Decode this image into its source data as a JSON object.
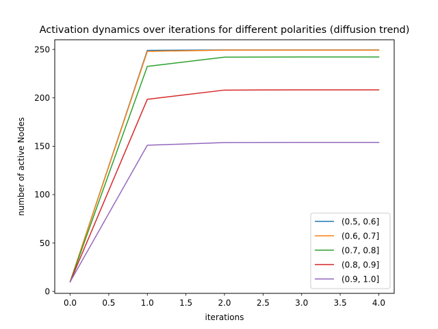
{
  "chart_data": {
    "type": "line",
    "title": "Activation dynamics over iterations for different polarities (diffusion trend)",
    "xlabel": "iterations",
    "ylabel": "number of active Nodes",
    "x": [
      0,
      1,
      2,
      3,
      4
    ],
    "xlim": [
      -0.2,
      4.2
    ],
    "ylim": [
      -2,
      260
    ],
    "xticks": [
      0.0,
      0.5,
      1.0,
      1.5,
      2.0,
      2.5,
      3.0,
      3.5,
      4.0
    ],
    "xtick_labels": [
      "0.0",
      "0.5",
      "1.0",
      "1.5",
      "2.0",
      "2.5",
      "3.0",
      "3.5",
      "4.0"
    ],
    "yticks": [
      0,
      50,
      100,
      150,
      200,
      250
    ],
    "ytick_labels": [
      "0",
      "50",
      "100",
      "150",
      "200",
      "250"
    ],
    "grid": false,
    "legend_position": "lower right",
    "series": [
      {
        "name": "(0.5, 0.6]",
        "color": "#1f77b4",
        "values": [
          10,
          249,
          249.5,
          249.5,
          249.5
        ]
      },
      {
        "name": "(0.6, 0.7]",
        "color": "#ff7f0e",
        "values": [
          10,
          248,
          249.3,
          249.3,
          249.3
        ]
      },
      {
        "name": "(0.7, 0.8]",
        "color": "#2ca02c",
        "values": [
          10,
          232.5,
          242,
          242.2,
          242.2
        ]
      },
      {
        "name": "(0.8, 0.9]",
        "color": "#d62728",
        "values": [
          10,
          198.5,
          208,
          208.2,
          208.2
        ]
      },
      {
        "name": "(0.9, 1.0]",
        "color": "#9467bd",
        "values": [
          10,
          151,
          153.8,
          154,
          154
        ]
      }
    ]
  }
}
